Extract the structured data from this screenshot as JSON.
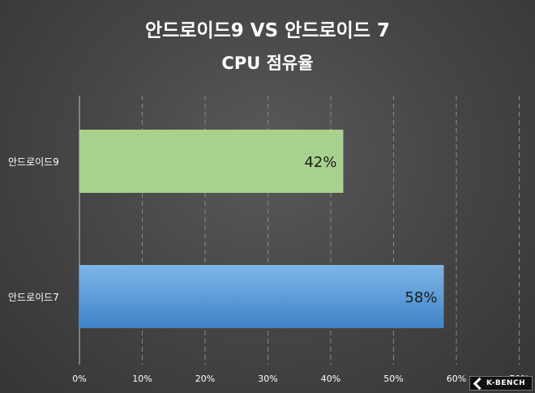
{
  "chart_data": {
    "type": "bar",
    "orientation": "horizontal",
    "title": "안드로이드9  VS 안드로이드  7",
    "subtitle": "CPU 점유율",
    "categories": [
      "안드로이드9",
      "안드로이드7"
    ],
    "values": [
      42,
      58
    ],
    "data_labels": [
      "42%",
      "58%"
    ],
    "xlim": [
      0,
      70
    ],
    "x_ticks": [
      "0%",
      "10%",
      "20%",
      "30%",
      "40%",
      "50%",
      "60%",
      "70%"
    ],
    "grid": true,
    "bar_colors": [
      "#a9d18e",
      "#5b9bd5"
    ]
  },
  "watermark": {
    "text": "K-BENCH"
  }
}
